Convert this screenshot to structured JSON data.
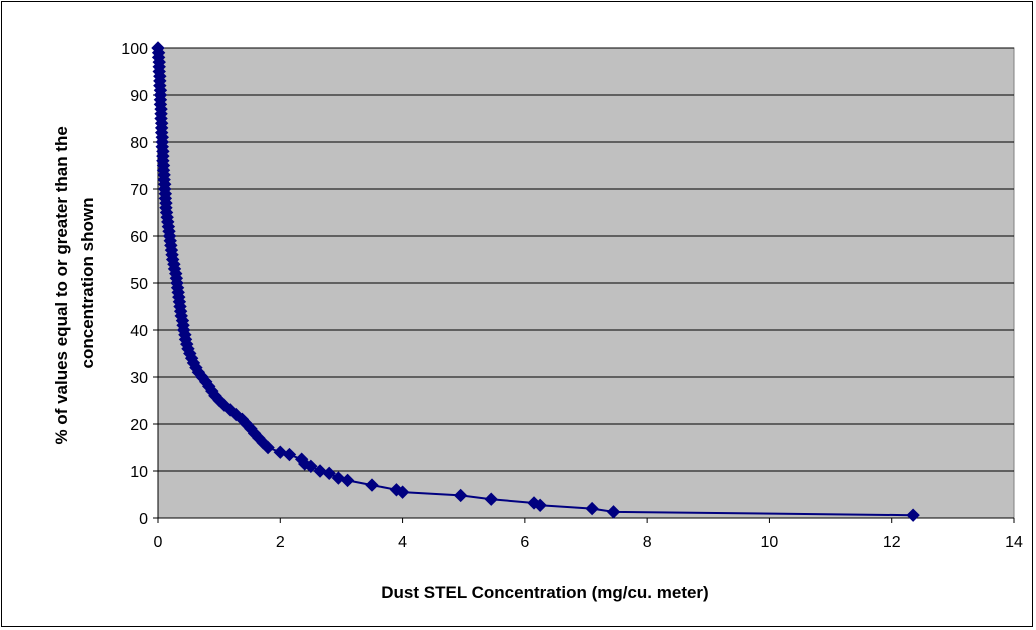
{
  "chart_data": {
    "type": "line",
    "title": "",
    "xlabel": "Dust STEL Concentration (mg/cu. meter)",
    "ylabel_lines": [
      "% of values equal to or greater than the",
      "concentration shown"
    ],
    "xlim": [
      0,
      14
    ],
    "ylim": [
      0,
      100
    ],
    "x_ticks": [
      0,
      2,
      4,
      6,
      8,
      10,
      12,
      14
    ],
    "y_ticks": [
      0,
      10,
      20,
      30,
      40,
      50,
      60,
      70,
      80,
      90,
      100
    ],
    "grid": "horizontal major gridlines",
    "legend": "none",
    "colors": {
      "series": "#000080",
      "plot_area": "#c0c0c0",
      "gridline": "#000000"
    },
    "marker": "diamond",
    "series": [
      {
        "values_xy": [
          [
            0.0,
            100
          ],
          [
            0.01,
            99
          ],
          [
            0.01,
            98
          ],
          [
            0.02,
            97
          ],
          [
            0.02,
            96
          ],
          [
            0.02,
            95
          ],
          [
            0.03,
            94
          ],
          [
            0.03,
            93
          ],
          [
            0.03,
            92
          ],
          [
            0.04,
            91
          ],
          [
            0.04,
            90
          ],
          [
            0.04,
            89
          ],
          [
            0.04,
            88
          ],
          [
            0.05,
            87
          ],
          [
            0.05,
            86
          ],
          [
            0.05,
            85
          ],
          [
            0.06,
            84
          ],
          [
            0.06,
            83
          ],
          [
            0.06,
            82
          ],
          [
            0.07,
            81
          ],
          [
            0.07,
            80
          ],
          [
            0.07,
            79
          ],
          [
            0.08,
            78
          ],
          [
            0.08,
            77
          ],
          [
            0.08,
            76
          ],
          [
            0.09,
            75
          ],
          [
            0.09,
            74
          ],
          [
            0.1,
            73
          ],
          [
            0.1,
            72
          ],
          [
            0.11,
            71
          ],
          [
            0.11,
            70
          ],
          [
            0.12,
            69
          ],
          [
            0.12,
            68
          ],
          [
            0.13,
            67
          ],
          [
            0.13,
            66
          ],
          [
            0.14,
            65
          ],
          [
            0.15,
            64
          ],
          [
            0.16,
            63
          ],
          [
            0.17,
            62
          ],
          [
            0.18,
            61
          ],
          [
            0.19,
            60
          ],
          [
            0.2,
            59
          ],
          [
            0.21,
            58
          ],
          [
            0.22,
            57
          ],
          [
            0.23,
            56
          ],
          [
            0.24,
            55
          ],
          [
            0.26,
            54
          ],
          [
            0.27,
            53
          ],
          [
            0.29,
            52
          ],
          [
            0.3,
            51
          ],
          [
            0.31,
            50
          ],
          [
            0.32,
            49
          ],
          [
            0.33,
            48
          ],
          [
            0.34,
            47
          ],
          [
            0.35,
            46
          ],
          [
            0.36,
            45
          ],
          [
            0.37,
            44
          ],
          [
            0.38,
            43
          ],
          [
            0.4,
            42
          ],
          [
            0.41,
            41
          ],
          [
            0.42,
            40
          ],
          [
            0.44,
            39
          ],
          [
            0.45,
            38
          ],
          [
            0.47,
            37
          ],
          [
            0.49,
            36
          ],
          [
            0.52,
            35
          ],
          [
            0.55,
            34
          ],
          [
            0.58,
            33
          ],
          [
            0.62,
            32
          ],
          [
            0.66,
            31
          ],
          [
            0.72,
            30
          ],
          [
            0.78,
            29
          ],
          [
            0.83,
            28
          ],
          [
            0.88,
            27
          ],
          [
            0.93,
            26
          ],
          [
            1.0,
            25
          ],
          [
            1.08,
            24
          ],
          [
            1.18,
            23
          ],
          [
            1.28,
            22
          ],
          [
            1.38,
            21
          ],
          [
            1.45,
            20
          ],
          [
            1.52,
            19
          ],
          [
            1.58,
            18
          ],
          [
            1.65,
            17
          ],
          [
            1.72,
            16
          ],
          [
            1.8,
            15
          ],
          [
            2.0,
            14
          ],
          [
            2.15,
            13.5
          ],
          [
            2.35,
            12.5
          ],
          [
            2.4,
            11.5
          ],
          [
            2.5,
            11
          ],
          [
            2.65,
            10
          ],
          [
            2.8,
            9.5
          ],
          [
            2.95,
            8.5
          ],
          [
            3.1,
            8
          ],
          [
            3.5,
            7
          ],
          [
            3.9,
            6
          ],
          [
            4.0,
            5.5
          ],
          [
            4.95,
            4.8
          ],
          [
            5.45,
            4
          ],
          [
            6.15,
            3.2
          ],
          [
            6.25,
            2.7
          ],
          [
            7.1,
            2.0
          ],
          [
            7.45,
            1.3
          ],
          [
            12.35,
            0.6
          ]
        ]
      }
    ]
  }
}
